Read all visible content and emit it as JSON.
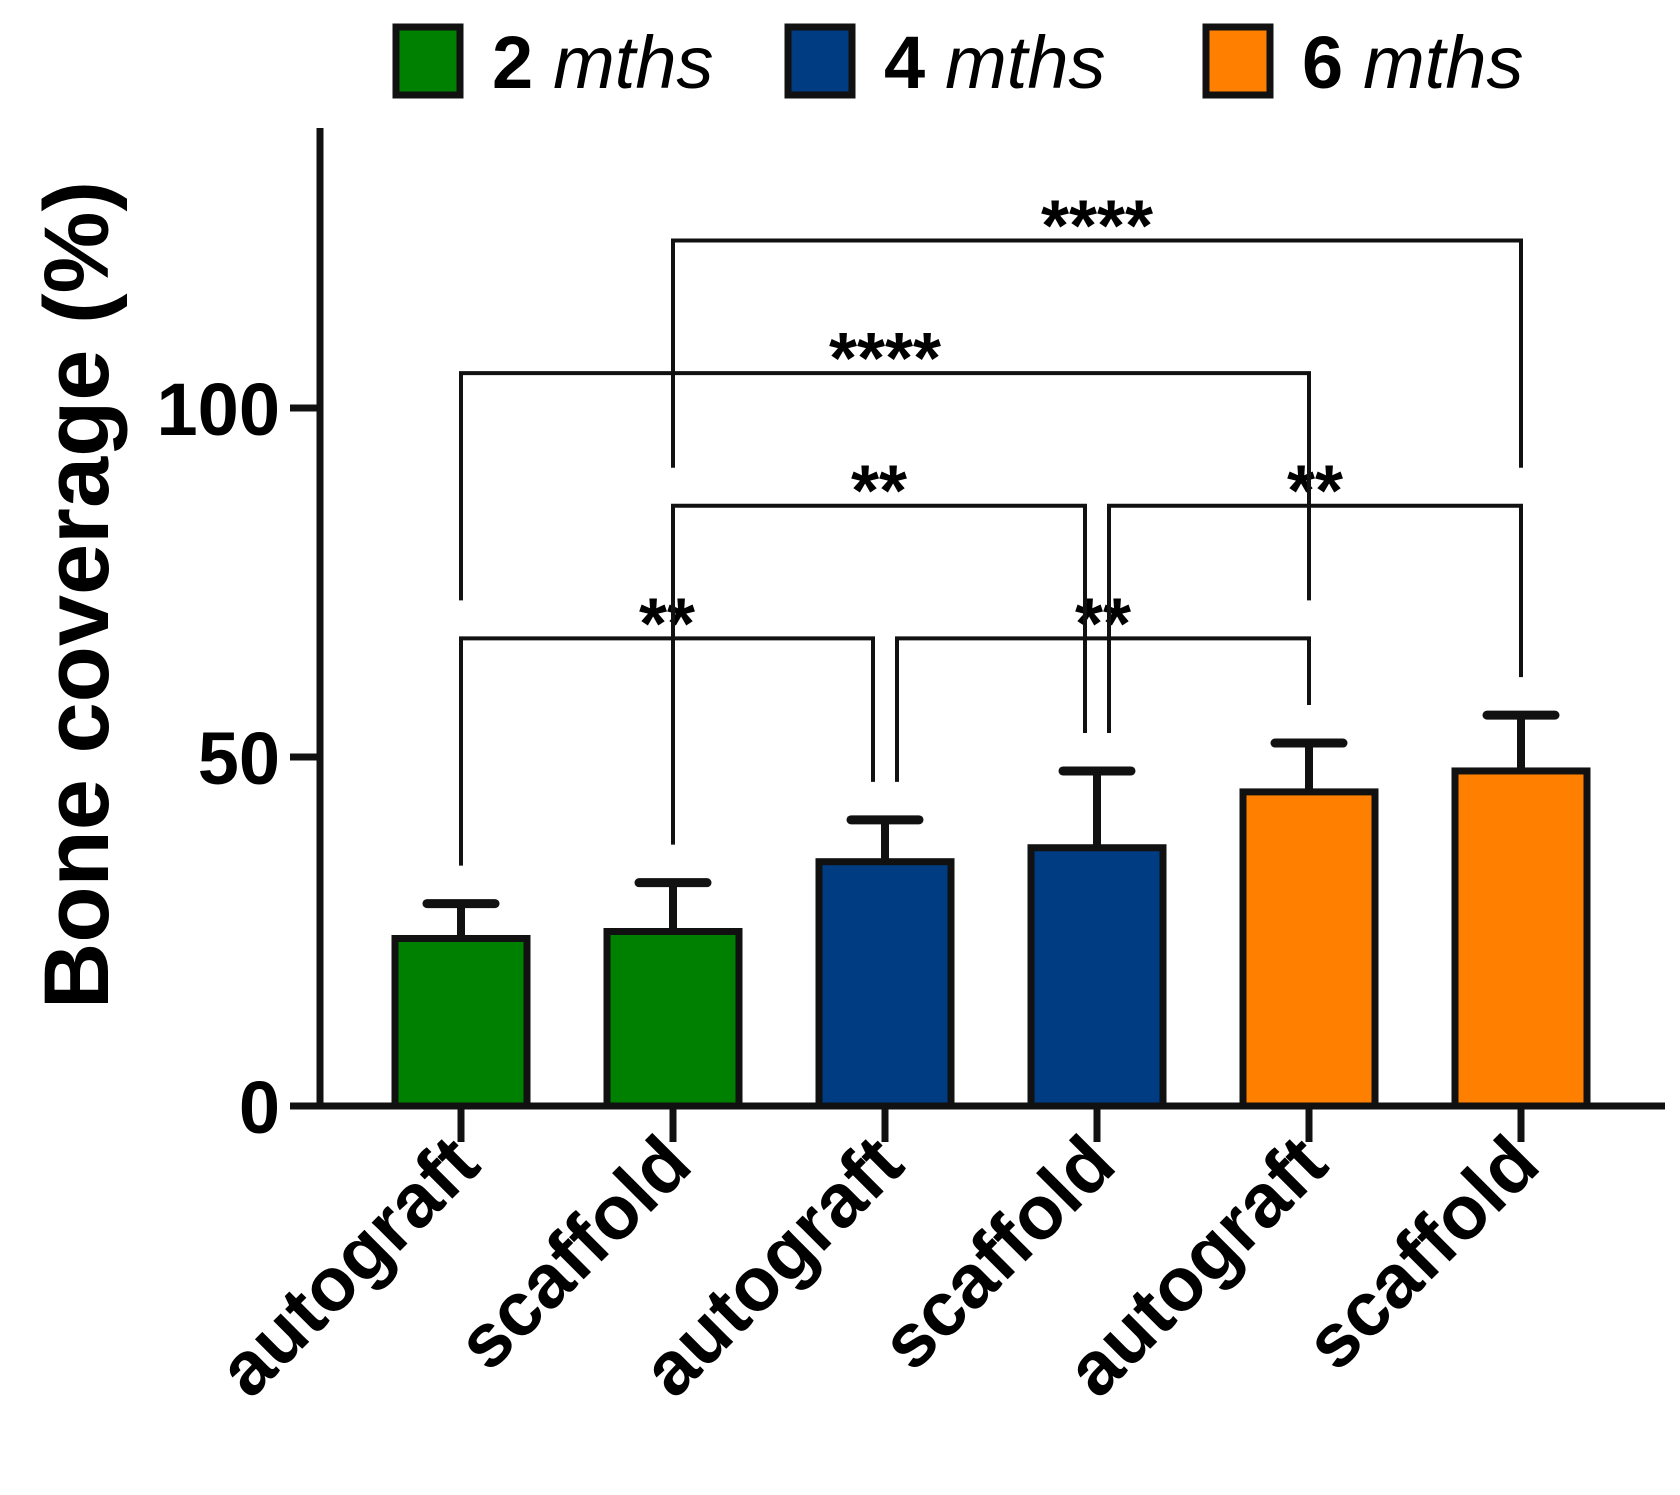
{
  "chart_data": {
    "type": "bar",
    "title": "",
    "xlabel": "",
    "ylabel": "Bone coverage (%)",
    "ylim": [
      0,
      140
    ],
    "yticks": [
      "0",
      "50",
      "100"
    ],
    "legend": {
      "position": "top",
      "entries": [
        {
          "number": "2",
          "unit": "mths",
          "color": "#008000"
        },
        {
          "number": "4",
          "unit": "mths",
          "color": "#003c82"
        },
        {
          "number": "6",
          "unit": "mths",
          "color": "#ff8000"
        }
      ]
    },
    "categories": [
      "autograft",
      "scaffold",
      "autograft",
      "scaffold",
      "autograft",
      "scaffold"
    ],
    "groups": [
      "2 mths",
      "2 mths",
      "4 mths",
      "4 mths",
      "6 mths",
      "6 mths"
    ],
    "colors": [
      "#008000",
      "#008000",
      "#003c82",
      "#003c82",
      "#ff8000",
      "#ff8000"
    ],
    "values": [
      24,
      25,
      35,
      37,
      45,
      48
    ],
    "error_upper": [
      29,
      32,
      41,
      48,
      52,
      56
    ],
    "significance": [
      {
        "from": 0,
        "to": 2,
        "level": 67,
        "label": "**"
      },
      {
        "from": 2,
        "to": 4,
        "level": 67,
        "label": "**"
      },
      {
        "from": 1,
        "to": 3,
        "level": 86,
        "label": "**"
      },
      {
        "from": 3,
        "to": 5,
        "level": 86,
        "label": "**"
      },
      {
        "from": 0,
        "to": 4,
        "level": 105,
        "label": "****"
      },
      {
        "from": 1,
        "to": 5,
        "level": 124,
        "label": "****"
      }
    ]
  }
}
